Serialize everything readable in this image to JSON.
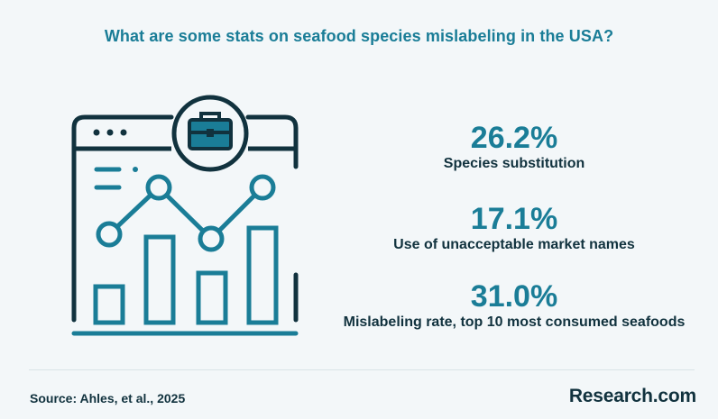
{
  "header": {
    "title": "What are some stats on seafood species mislabeling in the USA?"
  },
  "stats": [
    {
      "value": "26.2%",
      "label": "Species substitution"
    },
    {
      "value": "17.1%",
      "label": "Use of unacceptable market names"
    },
    {
      "value": "31.0%",
      "label": "Mislabeling rate, top 10 most consumed seafoods"
    }
  ],
  "footer": {
    "source": "Source: Ahles, et al., 2025",
    "brand": "Research.com"
  },
  "colors": {
    "accent": "#1a7d97",
    "dark": "#11323e",
    "background": "#f3f7f9",
    "icon_stroke": "#11323e",
    "icon_accent": "#1a7d97"
  },
  "icons": [
    "browser-window-icon",
    "briefcase-icon",
    "bar-chart-icon",
    "line-chart-icon"
  ]
}
